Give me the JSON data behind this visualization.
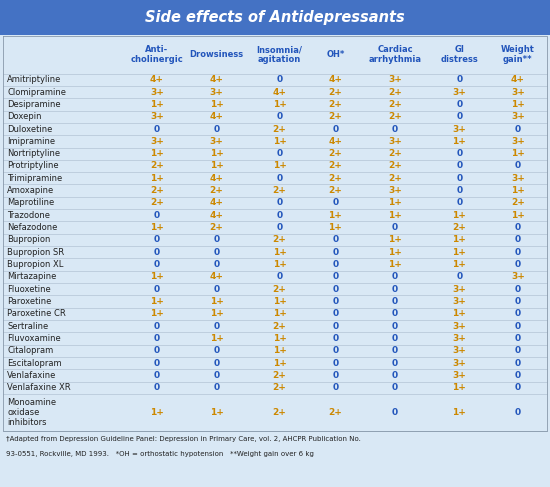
{
  "title": "Side effects of Antidepressants",
  "title_bg": "#4472C4",
  "title_color": "#FFFFFF",
  "header_color": "#2255BB",
  "row_bg": "#D9E8F5",
  "row_color": "#222222",
  "value_color_nonzero": "#CC8800",
  "value_color_zero": "#2255BB",
  "columns": [
    "Anti-\ncholinergic",
    "Drowsiness",
    "Insomnia/\nagitation",
    "OH*",
    "Cardiac\narrhythmia",
    "GI\ndistress",
    "Weight\ngain**"
  ],
  "drugs": [
    "Amitriptyline",
    "Clomipramine",
    "Desipramine",
    "Doxepin",
    "Duloxetine",
    "Imipramine",
    "Nortriptyline",
    "Protriptyline",
    "Trimipramine",
    "Amoxapine",
    "Maprotiline",
    "Trazodone",
    "Nefazodone",
    "Bupropion",
    "Bupropion SR",
    "Bupropion XL",
    "Mirtazapine",
    "Fluoxetine",
    "Paroxetine",
    "Paroxetine CR",
    "Sertraline",
    "Fluvoxamine",
    "Citalopram",
    "Escitalopram",
    "Venlafaxine",
    "Venlafaxine XR",
    "Monoamine\noxidase\ninhibitors"
  ],
  "data": [
    [
      "4+",
      "4+",
      "0",
      "4+",
      "3+",
      "0",
      "4+"
    ],
    [
      "3+",
      "3+",
      "4+",
      "2+",
      "2+",
      "3+",
      "3+"
    ],
    [
      "1+",
      "1+",
      "1+",
      "2+",
      "2+",
      "0",
      "1+"
    ],
    [
      "3+",
      "4+",
      "0",
      "2+",
      "2+",
      "0",
      "3+"
    ],
    [
      "0",
      "0",
      "2+",
      "0",
      "0",
      "3+",
      "0"
    ],
    [
      "3+",
      "3+",
      "1+",
      "4+",
      "3+",
      "1+",
      "3+"
    ],
    [
      "1+",
      "1+",
      "0",
      "2+",
      "2+",
      "0",
      "1+"
    ],
    [
      "2+",
      "1+",
      "1+",
      "2+",
      "2+",
      "0",
      "0"
    ],
    [
      "1+",
      "4+",
      "0",
      "2+",
      "2+",
      "0",
      "3+"
    ],
    [
      "2+",
      "2+",
      "2+",
      "2+",
      "3+",
      "0",
      "1+"
    ],
    [
      "2+",
      "4+",
      "0",
      "0",
      "1+",
      "0",
      "2+"
    ],
    [
      "0",
      "4+",
      "0",
      "1+",
      "1+",
      "1+",
      "1+"
    ],
    [
      "1+",
      "2+",
      "0",
      "1+",
      "0",
      "2+",
      "0"
    ],
    [
      "0",
      "0",
      "2+",
      "0",
      "1+",
      "1+",
      "0"
    ],
    [
      "0",
      "0",
      "1+",
      "0",
      "1+",
      "1+",
      "0"
    ],
    [
      "0",
      "0",
      "1+",
      "0",
      "1+",
      "1+",
      "0"
    ],
    [
      "1+",
      "4+",
      "0",
      "0",
      "0",
      "0",
      "3+"
    ],
    [
      "0",
      "0",
      "2+",
      "0",
      "0",
      "3+",
      "0"
    ],
    [
      "1+",
      "1+",
      "1+",
      "0",
      "0",
      "3+",
      "0"
    ],
    [
      "1+",
      "1+",
      "1+",
      "0",
      "0",
      "1+",
      "0"
    ],
    [
      "0",
      "0",
      "2+",
      "0",
      "0",
      "3+",
      "0"
    ],
    [
      "0",
      "1+",
      "1+",
      "0",
      "0",
      "3+",
      "0"
    ],
    [
      "0",
      "0",
      "1+",
      "0",
      "0",
      "3+",
      "0"
    ],
    [
      "0",
      "0",
      "1+",
      "0",
      "0",
      "3+",
      "0"
    ],
    [
      "0",
      "0",
      "2+",
      "0",
      "0",
      "3+",
      "0"
    ],
    [
      "0",
      "0",
      "2+",
      "0",
      "0",
      "1+",
      "0"
    ],
    [
      "1+",
      "1+",
      "2+",
      "2+",
      "0",
      "1+",
      "0"
    ]
  ],
  "footnote_line1": "†Adapted from Depression Guideline Panel: Depression in Primary Care, vol. 2, AHCPR Publication No.",
  "footnote_line2": "93-0551, Rockville, MD 1993.   *OH = orthostatic hypotension   **Weight gain over 6 kg"
}
